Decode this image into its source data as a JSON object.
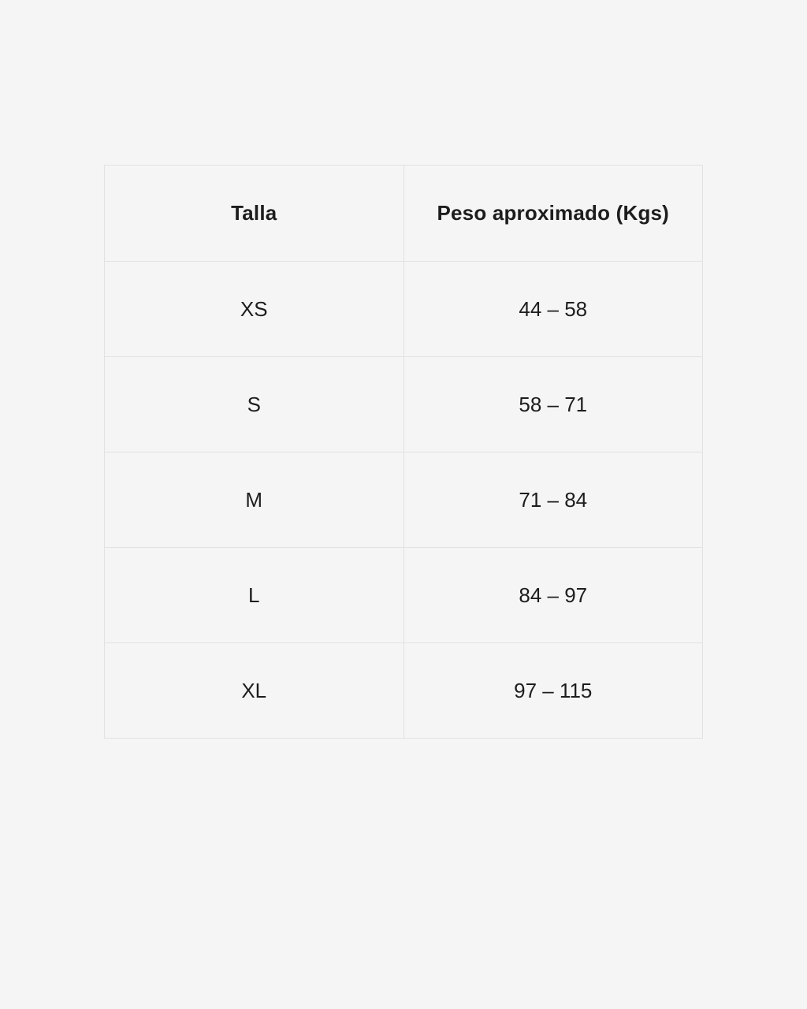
{
  "page": {
    "background_color": "#f5f5f5",
    "border_color": "#e2e2e2",
    "text_color": "#1d1d1d"
  },
  "table": {
    "columns": [
      "Talla",
      "Peso aproximado (Kgs)"
    ],
    "rows": [
      {
        "talla": "XS",
        "peso": "44 – 58"
      },
      {
        "talla": "S",
        "peso": "58 – 71"
      },
      {
        "talla": "M",
        "peso": "71 – 84"
      },
      {
        "talla": "L",
        "peso": "84 – 97"
      },
      {
        "talla": "XL",
        "peso": "97 – 115"
      }
    ]
  },
  "chart_data": {
    "type": "table",
    "title": "",
    "columns": [
      "Talla",
      "Peso aproximado (Kgs)"
    ],
    "rows": [
      [
        "XS",
        "44 – 58"
      ],
      [
        "S",
        "58 – 71"
      ],
      [
        "M",
        "71 – 84"
      ],
      [
        "L",
        "84 – 97"
      ],
      [
        "XL",
        "97 – 115"
      ]
    ],
    "notes": "Size-to-weight conversion table; weights in kilograms; en dash used as range separator"
  }
}
